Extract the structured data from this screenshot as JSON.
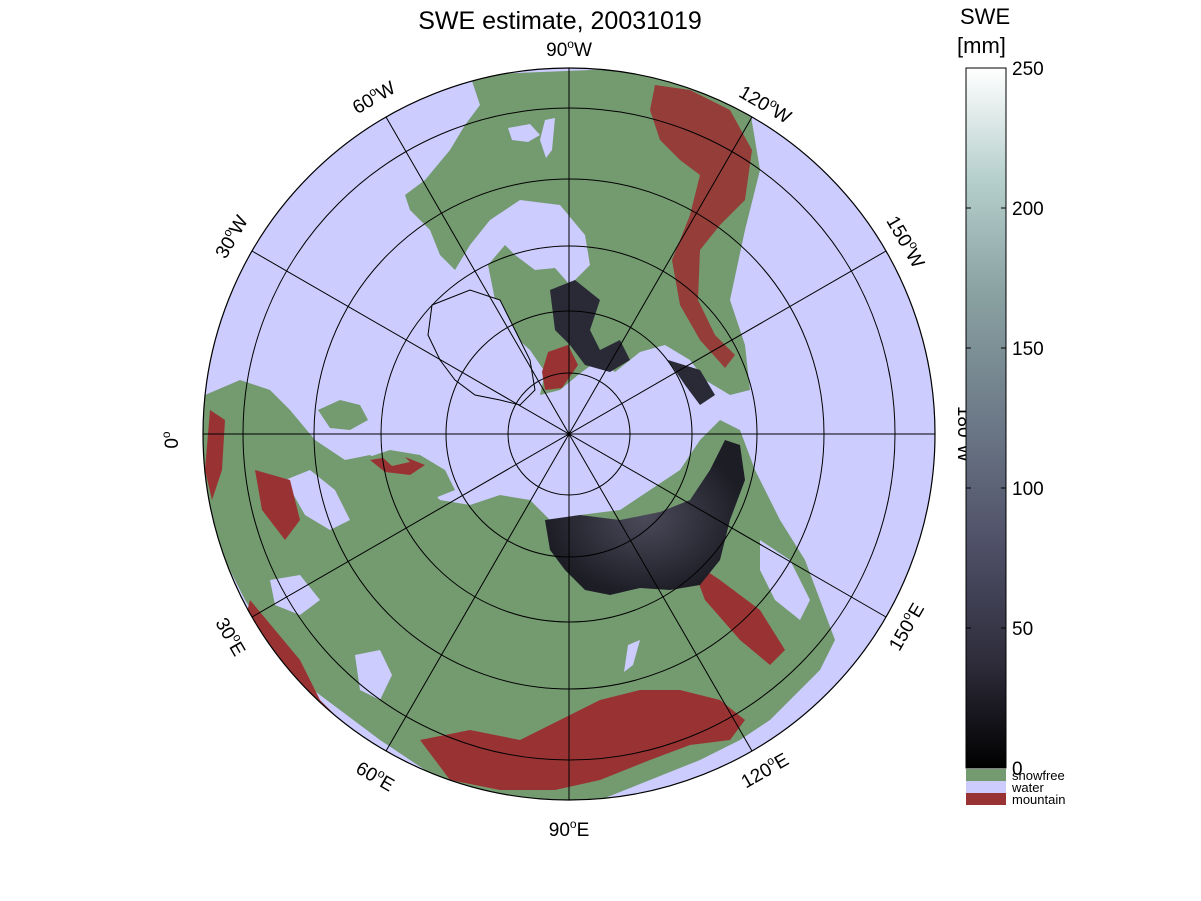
{
  "title": "SWE estimate, 20031019",
  "colorbar": {
    "title_line1": "SWE",
    "title_line2": "[mm]",
    "ticks": [
      "250",
      "200",
      "150",
      "100",
      "50",
      "0"
    ],
    "tick_values": [
      250,
      200,
      150,
      100,
      50,
      0
    ],
    "range": [
      0,
      250
    ],
    "gradient_colors": [
      "#000000",
      "#2e2c3a",
      "#4f5068",
      "#6d7a88",
      "#8aa2a2",
      "#b5cfcc",
      "#ffffff"
    ]
  },
  "legend": [
    {
      "label": "snowfree",
      "color": "#749a70"
    },
    {
      "label": "water",
      "color": "#ccccff"
    },
    {
      "label": "mountain",
      "color": "#993333"
    }
  ],
  "map": {
    "projection": "north polar stereographic",
    "ocean_color": "#ccccff",
    "land_color": "#749a70",
    "mountain_color": "#993333",
    "snow_dark_color": "#2a2a36",
    "ice_color": "#ccccff"
  },
  "graticule_labels": {
    "90W": {
      "deg": "90",
      "hemi": "W"
    },
    "120W": {
      "deg": "120",
      "hemi": "W"
    },
    "150W": {
      "deg": "150",
      "hemi": "W"
    },
    "180W": {
      "deg": "180",
      "hemi": "W"
    },
    "150E": {
      "deg": "150",
      "hemi": "E"
    },
    "120E": {
      "deg": "120",
      "hemi": "E"
    },
    "90E": {
      "deg": "90",
      "hemi": "E"
    },
    "60E": {
      "deg": "60",
      "hemi": "E"
    },
    "30E": {
      "deg": "30",
      "hemi": "E"
    },
    "0": {
      "deg": "0",
      "hemi": ""
    },
    "30W": {
      "deg": "30",
      "hemi": "W"
    },
    "60W": {
      "deg": "60",
      "hemi": "W"
    }
  }
}
